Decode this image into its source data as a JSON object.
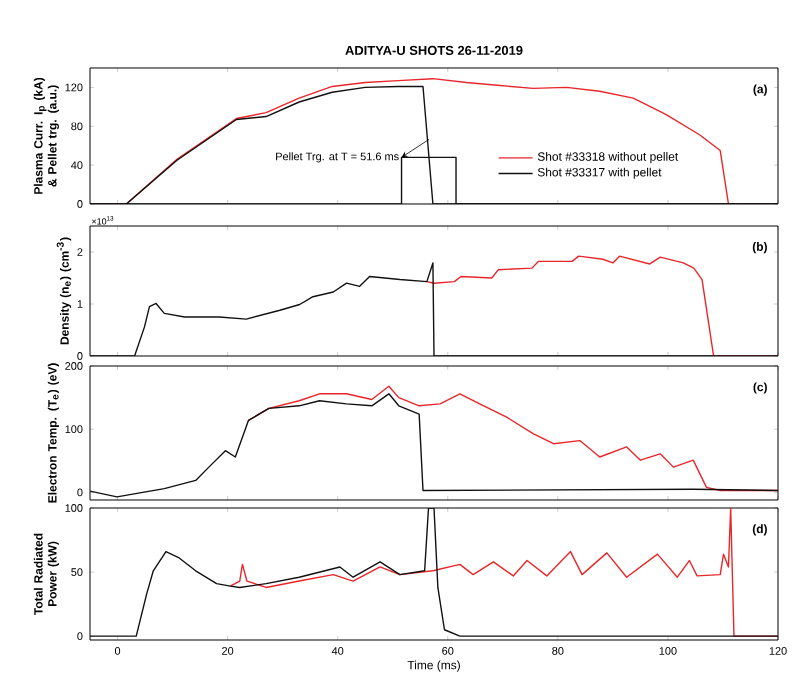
{
  "chart_data": [
    {
      "type": "line",
      "title": "ADITYA-U SHOTS  26-11-2019",
      "ylabel": "Plasma Curr. I$_{p}$ (kA) & Pellet trg. (a.u.)",
      "xlim": [
        -5,
        120
      ],
      "ylim": [
        0,
        140
      ],
      "xticks": [
        0,
        20,
        40,
        60,
        80,
        100,
        120
      ],
      "yticks": [
        0,
        40,
        80,
        120
      ],
      "tick_labels": "y",
      "legend": "bottom right",
      "annotations": [
        "(a)",
        {
          "text": "Pellet Trg. at T = 51.6 ms",
          "x": 51.6,
          "y": 48
        }
      ],
      "series": [
        {
          "name": "Shot #33318 without pellet",
          "color": "#e8262a",
          "x": [
            -5,
            1.6,
            10.8,
            21.6,
            27,
            33,
            39,
            45,
            51,
            57.3,
            63.4,
            69.5,
            75.5,
            81.6,
            87.6,
            93.7,
            99.7,
            105.8,
            109.5,
            111,
            120
          ],
          "values": [
            0,
            0,
            46,
            88,
            94,
            109,
            121,
            125,
            127,
            129,
            125,
            122,
            119,
            120,
            116,
            109,
            92,
            71,
            55,
            0,
            0
          ]
        },
        {
          "name": "Shot #33317 with pellet",
          "color": "#111111",
          "x": [
            -5,
            1.6,
            10.8,
            21.6,
            27,
            33,
            39,
            45,
            51,
            55.5,
            57.3,
            120
          ],
          "values": [
            0,
            0,
            45,
            87,
            90,
            105,
            115,
            120,
            121,
            121,
            0,
            0
          ]
        },
        {
          "color": "#111111",
          "x": [
            -5,
            51.6,
            51.6,
            61.5,
            61.5,
            120
          ],
          "values": [
            0,
            0,
            48,
            48,
            0,
            0
          ]
        }
      ]
    },
    {
      "type": "line",
      "ylabel": "Density (n$_{e}$) (cm$^{-3}$)",
      "xlim": [
        -5,
        120
      ],
      "ylim": [
        0,
        2.5
      ],
      "xticks": [
        0,
        20,
        40,
        60,
        80,
        100,
        120
      ],
      "yticks": [
        0,
        1,
        2
      ],
      "tick_labels": "y",
      "annotations": [
        "(b)",
        "×10$^{13}$"
      ],
      "series": [
        {
          "color": "#e8262a",
          "x": [
            56.2,
            57.5,
            61.2,
            62.4,
            68,
            69.2,
            75.3,
            76.5,
            82.6,
            83.8,
            88.2,
            90,
            91.2,
            96.7,
            98.6,
            102.8,
            104.7,
            106.2,
            108.3,
            120
          ],
          "values": [
            1.43,
            1.4,
            1.43,
            1.53,
            1.5,
            1.66,
            1.69,
            1.82,
            1.82,
            1.92,
            1.86,
            1.79,
            1.92,
            1.77,
            1.9,
            1.79,
            1.69,
            1.47,
            0,
            0
          ]
        },
        {
          "color": "#111111",
          "x": [
            -5,
            3.1,
            4.9,
            5.8,
            7.0,
            8.5,
            12.2,
            18.5,
            23.4,
            29.5,
            33.1,
            35.5,
            39.2,
            41.6,
            44,
            45.8,
            51.3,
            56.2,
            57.3,
            57.5,
            120
          ],
          "values": [
            0,
            0,
            0.56,
            0.95,
            1.01,
            0.82,
            0.75,
            0.75,
            0.71,
            0.88,
            0.99,
            1.14,
            1.23,
            1.4,
            1.34,
            1.53,
            1.47,
            1.43,
            1.79,
            0,
            0
          ]
        }
      ]
    },
    {
      "type": "line",
      "ylabel": "Electron Temp. (T$_{e}$) (eV)",
      "xlim": [
        -5,
        120
      ],
      "ylim": [
        -12,
        200
      ],
      "xticks": [
        0,
        20,
        40,
        60,
        80,
        100,
        120
      ],
      "yticks": [
        0,
        100,
        200
      ],
      "tick_labels": "y",
      "annotations": [
        "(c)"
      ],
      "series": [
        {
          "color": "#e8262a",
          "x": [
            23.8,
            27.5,
            33,
            36.7,
            41.6,
            46.2,
            49.3,
            51.1,
            54.8,
            58.6,
            62.2,
            65.8,
            70.7,
            75.5,
            79.2,
            84,
            87.6,
            92.5,
            95,
            98.6,
            101,
            104.6,
            107,
            109.5,
            120
          ],
          "values": [
            114,
            133,
            145,
            156,
            156,
            147,
            168,
            150,
            137,
            140,
            156,
            140,
            119,
            93,
            77,
            82,
            56,
            72,
            51,
            61,
            40,
            51,
            8,
            3,
            3
          ]
        },
        {
          "color": "#111111",
          "x": [
            -5,
            -0.1,
            8.5,
            14.2,
            16.6,
            19.6,
            21.4,
            23.8,
            27.5,
            33,
            36.7,
            41.6,
            46.2,
            49.3,
            51.1,
            54.8,
            55.5,
            104.6,
            120
          ],
          "values": [
            2,
            -7,
            6,
            19,
            40,
            66,
            56,
            114,
            133,
            137,
            145,
            140,
            137,
            156,
            137,
            124,
            3,
            5,
            3
          ]
        }
      ]
    },
    {
      "type": "line",
      "ylabel": "Total Radiated Power (kW)",
      "xlabel": "Time (ms)",
      "xlim": [
        -5,
        120
      ],
      "ylim": [
        -3,
        100
      ],
      "xticks": [
        0,
        20,
        40,
        60,
        80,
        100,
        120
      ],
      "yticks": [
        0,
        50,
        100
      ],
      "annotations": [
        "(d)"
      ],
      "series": [
        {
          "color": "#e8262a",
          "x": [
            20.5,
            22.2,
            22.7,
            23.5,
            27,
            33,
            39.2,
            42.8,
            47.7,
            51.3,
            57.3,
            62.2,
            64.6,
            68.3,
            71.9,
            74.4,
            78,
            82.3,
            84.4,
            88.9,
            92.5,
            98.1,
            101.7,
            103.9,
            105.3,
            109.5,
            110.1,
            111,
            111.4,
            112,
            120
          ],
          "values": [
            39,
            43,
            56,
            43,
            38,
            43,
            48,
            43,
            54,
            48,
            51,
            56,
            48,
            58,
            47,
            59,
            47,
            66,
            48,
            65,
            46,
            64,
            46,
            59,
            47,
            48,
            64,
            54,
            100,
            0,
            0
          ]
        },
        {
          "color": "#111111",
          "x": [
            -5,
            3.4,
            5.3,
            6.5,
            8.8,
            11.2,
            14.2,
            18,
            20.5,
            22.2,
            27,
            33,
            40.4,
            42.8,
            47.7,
            51.3,
            55.8,
            56.5,
            57.5,
            58.2,
            59.4,
            62.2,
            120
          ],
          "values": [
            0,
            0,
            33,
            51,
            66,
            61,
            51,
            41,
            39,
            38,
            41,
            46,
            54,
            46,
            58,
            48,
            51,
            100,
            100,
            38,
            5,
            0,
            0
          ]
        }
      ]
    }
  ]
}
